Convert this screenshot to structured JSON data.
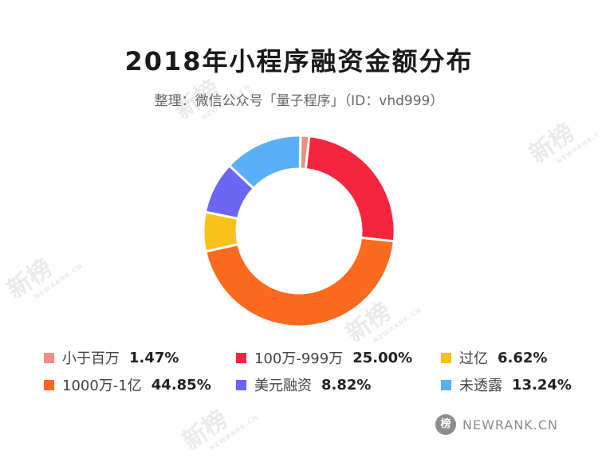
{
  "title": "2018年小程序融资金额分布",
  "subtitle": "整理：微信公众号「量子程序」（ID：vhd999）",
  "watermark_text": "新榜",
  "watermark_sub": "NEWRANK.CN",
  "brand": {
    "icon_text": "榜",
    "text": "NEWRANK.CN"
  },
  "chart_data": {
    "type": "pie",
    "donut": true,
    "title": "2018年小程序融资金额分布",
    "legend_position": "bottom",
    "slices": [
      {
        "label": "小于百万",
        "value": 1.47,
        "display": "1.47%",
        "color": "#f08d84"
      },
      {
        "label": "100万-999万",
        "value": 25.0,
        "display": "25.00%",
        "color": "#f5253f"
      },
      {
        "label": "1000万-1亿",
        "value": 44.85,
        "display": "44.85%",
        "color": "#fa6b1f"
      },
      {
        "label": "过亿",
        "value": 6.62,
        "display": "6.62%",
        "color": "#f9c11c"
      },
      {
        "label": "美元融资",
        "value": 8.82,
        "display": "8.82%",
        "color": "#6b66f4"
      },
      {
        "label": "未透露",
        "value": 13.24,
        "display": "13.24%",
        "color": "#59b0f6"
      }
    ]
  },
  "legend": [
    {
      "label": "小于百万",
      "display": "1.47%",
      "color": "#f08d84"
    },
    {
      "label": "100万-999万",
      "display": "25.00%",
      "color": "#f5253f"
    },
    {
      "label": "过亿",
      "display": "6.62%",
      "color": "#f9c11c"
    },
    {
      "label": "1000万-1亿",
      "display": "44.85%",
      "color": "#fa6b1f"
    },
    {
      "label": "美元融资",
      "display": "8.82%",
      "color": "#6b66f4"
    },
    {
      "label": "未透露",
      "display": "13.24%",
      "color": "#59b0f6"
    }
  ]
}
